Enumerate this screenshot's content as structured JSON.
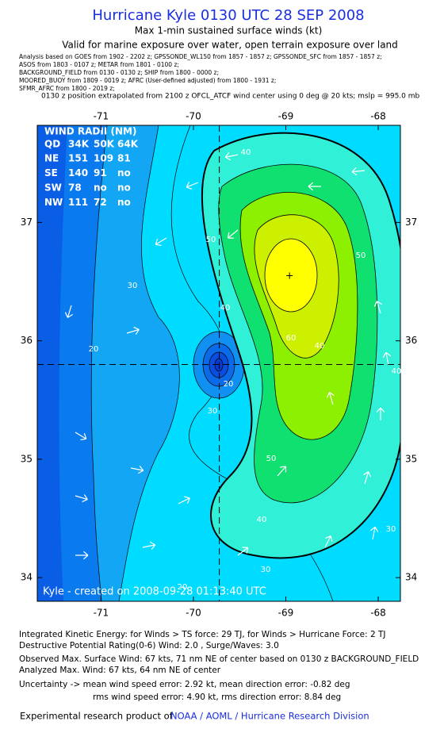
{
  "chart_data": {
    "type": "map",
    "title": "Hurricane Kyle 0130 UTC 28 SEP 2008",
    "subtitle": "Max 1-min sustained surface winds (kt)",
    "subtitle2": "Valid for marine exposure over water, open terrain exposure over land",
    "analysis_lines": [
      "Analysis based on  GOES from 1902 - 2202 z;  GPSSONDE_WL150 from 1857 - 1857 z;  GPSSONDE_SFC from 1857 - 1857 z;",
      "ASOS from 1803 - 0107 z;  METAR from 1801 - 0100 z;",
      "BACKGROUND_FIELD from 0130 - 0130 z;  SHIP from 1800 - 0000 z;",
      "MOORED_BUOY from 1809 - 0019 z;  AFRC (User-defined adjusted) from 1800 - 1931 z;",
      "SFMR_AFRC from 1800 - 2019 z;"
    ],
    "position_note": "0130 z position extrapolated from 2100 z OFCL_ATCF wind center using 0 deg @ 20 kts; mslp = 995.0 mb",
    "xlim": [
      -71.69,
      -67.76
    ],
    "xticks": [
      -71,
      -70,
      -69,
      -68
    ],
    "ylim": [
      33.8,
      37.82
    ],
    "yticks": [
      34,
      35,
      36,
      37
    ],
    "center": {
      "lon": -69.72,
      "lat": 35.8
    },
    "max_wind_location": {
      "lon": -68.96,
      "lat": 36.55
    },
    "contour_labels": [
      40,
      50,
      50,
      30,
      40,
      60,
      20,
      20,
      30,
      40,
      50,
      40,
      30,
      30,
      20,
      40
    ],
    "wind_radii": {
      "title": "WIND RADII (NM)",
      "header": [
        "QD",
        "34K",
        "50K",
        "64K"
      ],
      "rows": [
        [
          "NE",
          "151",
          "109",
          "81"
        ],
        [
          "SE",
          "140",
          "91",
          "no"
        ],
        [
          "SW",
          "78",
          "no",
          "no"
        ],
        [
          "NW",
          "111",
          "72",
          "no"
        ]
      ]
    },
    "credit": "Kyle - created on 2008-09-28 01:13:40 UTC",
    "footer_lines": [
      "Integrated Kinetic Energy:  for Winds > TS force: 29 TJ,  for Winds > Hurricane Force: 2 TJ",
      "Destructive Potential Rating(0-6)   Wind: 2.0 , Surge/Waves: 3.0",
      "Observed Max. Surface Wind: 67 kts, 71 nm NE of center based on 0130 z BACKGROUND_FIELD",
      "Analyzed Max. Wind: 67 kts, 64 nm NE of center",
      "Uncertainty -> mean wind speed error: 2.92 kt,   mean direction error:  -0.82 deg",
      "rms wind speed error: 4.90 kt,   rms direction error: 8.84 deg"
    ],
    "product_prefix": "Experimental research product of",
    "product_org": "NOAA / AOML / Hurricane Research Division"
  }
}
